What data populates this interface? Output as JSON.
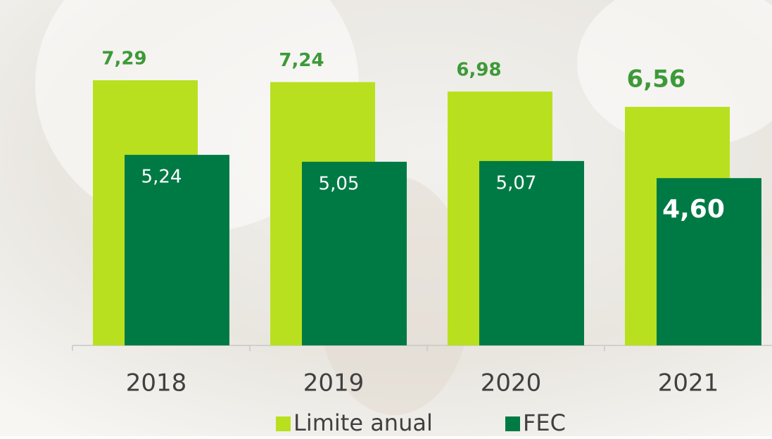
{
  "chart_data": {
    "type": "bar",
    "categories": [
      "2018",
      "2019",
      "2020",
      "2021"
    ],
    "series": [
      {
        "name": "Limite anual",
        "color": "#b9e01e",
        "values": [
          7.29,
          7.24,
          6.98,
          6.56
        ],
        "value_labels": [
          "7,29",
          "7,24",
          "6,98",
          "6,56"
        ]
      },
      {
        "name": "FEC",
        "color": "#007a45",
        "values": [
          5.24,
          5.05,
          5.07,
          4.6
        ],
        "value_labels": [
          "5,24",
          "5,05",
          "5,07",
          "4,60"
        ]
      }
    ],
    "legend": "bottom"
  }
}
